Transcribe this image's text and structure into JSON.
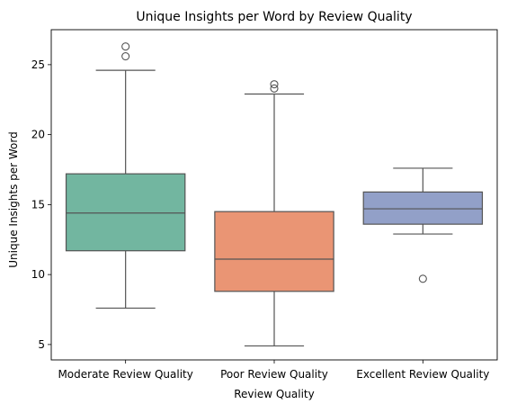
{
  "chart_data": {
    "type": "box",
    "title": "Unique Insights per Word by Review Quality",
    "xlabel": "Review Quality",
    "ylabel": "Unique Insights per Word",
    "ylim": [
      3.9,
      27.5
    ],
    "yticks": [
      5,
      10,
      15,
      20,
      25
    ],
    "grid": false,
    "legend": "none",
    "categories": [
      "Moderate Review Quality",
      "Poor Review Quality",
      "Excellent Review Quality"
    ],
    "boxes": [
      {
        "category": "Moderate Review Quality",
        "color": "#72b6a0",
        "whisker_low": 7.6,
        "q1": 11.7,
        "median": 14.4,
        "q3": 17.2,
        "whisker_high": 24.6,
        "outliers": [
          25.6,
          26.3
        ]
      },
      {
        "category": "Poor Review Quality",
        "color": "#ea9574",
        "whisker_low": 4.9,
        "q1": 8.8,
        "median": 11.1,
        "q3": 14.5,
        "whisker_high": 22.9,
        "outliers": [
          23.3,
          23.6
        ]
      },
      {
        "category": "Excellent Review Quality",
        "color": "#92a0c8",
        "whisker_low": 12.9,
        "q1": 13.6,
        "median": 14.7,
        "q3": 15.9,
        "whisker_high": 17.6,
        "outliers": [
          9.7
        ]
      }
    ]
  }
}
